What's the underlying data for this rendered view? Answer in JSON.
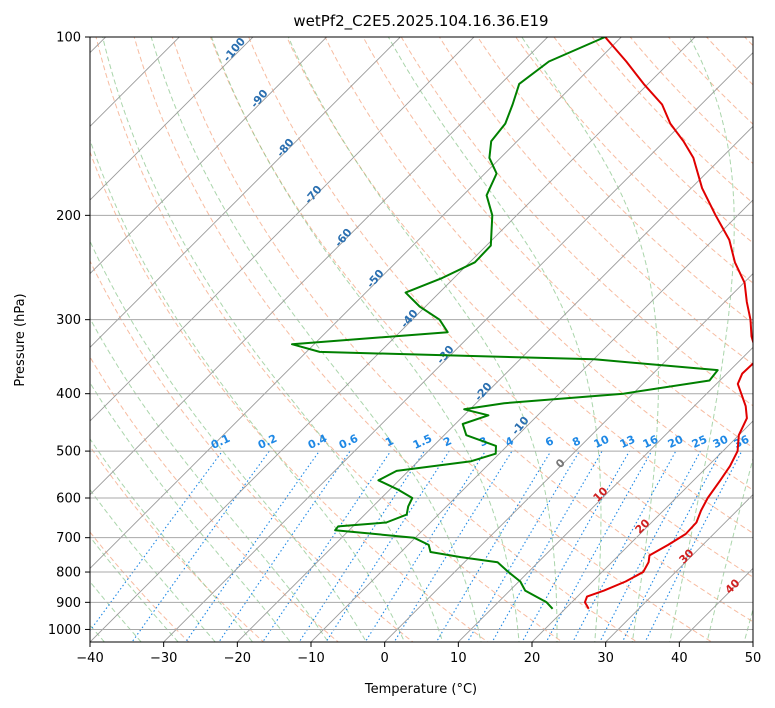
{
  "chart_data": {
    "type": "line",
    "title": "wetPf2_C2E5.2025.104.16.36.E19",
    "xlabel": "Temperature (°C)",
    "ylabel": "Pressure (hPa)",
    "xlim": [
      -40,
      50
    ],
    "ylim": [
      1050,
      100
    ],
    "y_scale": "log",
    "x_ticks": [
      "−40",
      "−30",
      "−20",
      "−10",
      "0",
      "10",
      "20",
      "30",
      "40",
      "50"
    ],
    "x_tick_values": [
      -40,
      -30,
      -20,
      -10,
      0,
      10,
      20,
      30,
      40,
      50
    ],
    "y_ticks": [
      "100",
      "200",
      "300",
      "400",
      "500",
      "600",
      "700",
      "800",
      "900",
      "1000"
    ],
    "y_tick_values": [
      100,
      200,
      300,
      400,
      500,
      600,
      700,
      800,
      900,
      1000
    ],
    "skew_deg": 45,
    "grid": true,
    "colors": {
      "temperature": "#e00000",
      "dewpoint": "#008000",
      "dry_adiabat": "#f4a582",
      "moist_adiabat": "#86c387",
      "mixing_ratio": "#1e88e5",
      "isotherm": "#9a9a9a",
      "isobar": "#a8a8a8"
    },
    "series": [
      {
        "key": "temperature",
        "points": [
          [
            923,
            23.2
          ],
          [
            900,
            21.8
          ],
          [
            880,
            21.3
          ],
          [
            860,
            22.8
          ],
          [
            830,
            24.5
          ],
          [
            800,
            25.6
          ],
          [
            770,
            25.0
          ],
          [
            750,
            24.2
          ],
          [
            720,
            25.3
          ],
          [
            690,
            26.2
          ],
          [
            660,
            26.1
          ],
          [
            630,
            25.1
          ],
          [
            600,
            24.3
          ],
          [
            560,
            23.6
          ],
          [
            530,
            23.0
          ],
          [
            500,
            22.0
          ],
          [
            470,
            20.0
          ],
          [
            440,
            18.8
          ],
          [
            420,
            17.0
          ],
          [
            400,
            14.7
          ],
          [
            385,
            12.9
          ],
          [
            370,
            12.1
          ],
          [
            355,
            12.2
          ],
          [
            345,
            11.7
          ],
          [
            320,
            8.3
          ],
          [
            300,
            5.9
          ],
          [
            280,
            3.0
          ],
          [
            260,
            0.1
          ],
          [
            240,
            -4.0
          ],
          [
            220,
            -7.8
          ],
          [
            200,
            -13.0
          ],
          [
            180,
            -18.5
          ],
          [
            160,
            -23.8
          ],
          [
            150,
            -27.4
          ],
          [
            140,
            -31.6
          ],
          [
            130,
            -35.3
          ],
          [
            120,
            -40.6
          ],
          [
            110,
            -46.0
          ],
          [
            100,
            -52.2
          ]
        ]
      },
      {
        "key": "dewpoint",
        "points": [
          [
            923,
            18.3
          ],
          [
            900,
            16.6
          ],
          [
            880,
            14.4
          ],
          [
            860,
            12.1
          ],
          [
            830,
            10.2
          ],
          [
            800,
            7.3
          ],
          [
            770,
            4.5
          ],
          [
            755,
            -1.2
          ],
          [
            740,
            -6.0
          ],
          [
            720,
            -7.2
          ],
          [
            700,
            -10.2
          ],
          [
            680,
            -21.9
          ],
          [
            670,
            -22.0
          ],
          [
            660,
            -16.0
          ],
          [
            640,
            -14.3
          ],
          [
            620,
            -15.2
          ],
          [
            600,
            -15.8
          ],
          [
            580,
            -19.0
          ],
          [
            560,
            -22.8
          ],
          [
            540,
            -21.6
          ],
          [
            520,
            -12.8
          ],
          [
            505,
            -10.5
          ],
          [
            490,
            -11.5
          ],
          [
            470,
            -17.0
          ],
          [
            450,
            -19.0
          ],
          [
            435,
            -16.7
          ],
          [
            425,
            -20.8
          ],
          [
            415,
            -16.2
          ],
          [
            400,
            -1.3
          ],
          [
            380,
            8.6
          ],
          [
            365,
            8.3
          ],
          [
            350,
            -9.9
          ],
          [
            340,
            -48.2
          ],
          [
            330,
            -53.0
          ],
          [
            315,
            -33.5
          ],
          [
            300,
            -36.3
          ],
          [
            285,
            -40.8
          ],
          [
            270,
            -44.6
          ],
          [
            255,
            -41.6
          ],
          [
            240,
            -39.3
          ],
          [
            225,
            -39.4
          ],
          [
            200,
            -43.3
          ],
          [
            185,
            -46.8
          ],
          [
            170,
            -48.4
          ],
          [
            160,
            -51.5
          ],
          [
            150,
            -53.5
          ],
          [
            140,
            -54.0
          ],
          [
            130,
            -55.6
          ],
          [
            120,
            -57.5
          ],
          [
            110,
            -56.5
          ],
          [
            100,
            -52.2
          ]
        ]
      }
    ],
    "dry_adiabat_labels": [
      "-100",
      "-90",
      "-80",
      "-70",
      "-60",
      "-50",
      "-40",
      "-30",
      "-20",
      "-10"
    ],
    "moist_adiabat_labels": [
      "0",
      "10",
      "20",
      "30",
      "40"
    ],
    "mixing_ratio_labels": [
      "0.1",
      "0.2",
      "0.4",
      "0.6",
      "1",
      "1.5",
      "2",
      "3",
      "4",
      "6",
      "8",
      "10",
      "13",
      "16",
      "20",
      "25",
      "30",
      "36"
    ],
    "mixing_ratio_values": [
      0.1,
      0.2,
      0.4,
      0.6,
      1,
      1.5,
      2,
      3,
      4,
      6,
      8,
      10,
      13,
      16,
      20,
      25,
      30,
      36
    ]
  }
}
